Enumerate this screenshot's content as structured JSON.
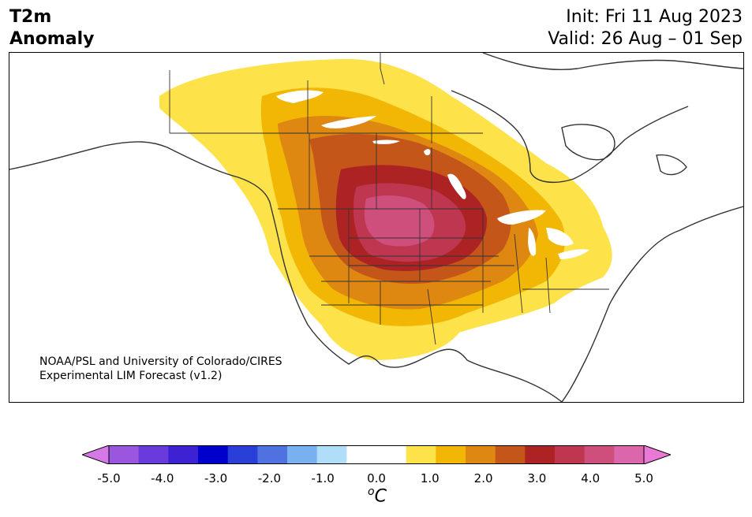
{
  "header": {
    "title_line1": "T2m",
    "title_line2": "Anomaly",
    "init": "Init: Fri 11 Aug 2023",
    "valid": "Valid: 26 Aug – 01 Sep"
  },
  "map": {
    "credit_line1": "NOAA/PSL and University of Colorado/CIRES",
    "credit_line2": "Experimental LIM Forecast (v1.2)"
  },
  "colorbar": {
    "ticks": [
      "-5.0",
      "-4.0",
      "-3.0",
      "-2.0",
      "-1.0",
      "0.0",
      "1.0",
      "2.0",
      "3.0",
      "4.0",
      "5.0"
    ],
    "unit_symbol": "o",
    "unit_letter": "C",
    "colors": [
      "#d479e6",
      "#9a56de",
      "#6a3bdc",
      "#3d22d4",
      "#0000cc",
      "#2a3ed8",
      "#4f72e0",
      "#78b0f0",
      "#b0def8",
      "#ffffff",
      "#ffffff",
      "#fde24a",
      "#f2b705",
      "#de8812",
      "#c4561a",
      "#ad2324",
      "#bf3650",
      "#ce4f7c",
      "#dc66ac",
      "#ea79d6"
    ]
  }
}
